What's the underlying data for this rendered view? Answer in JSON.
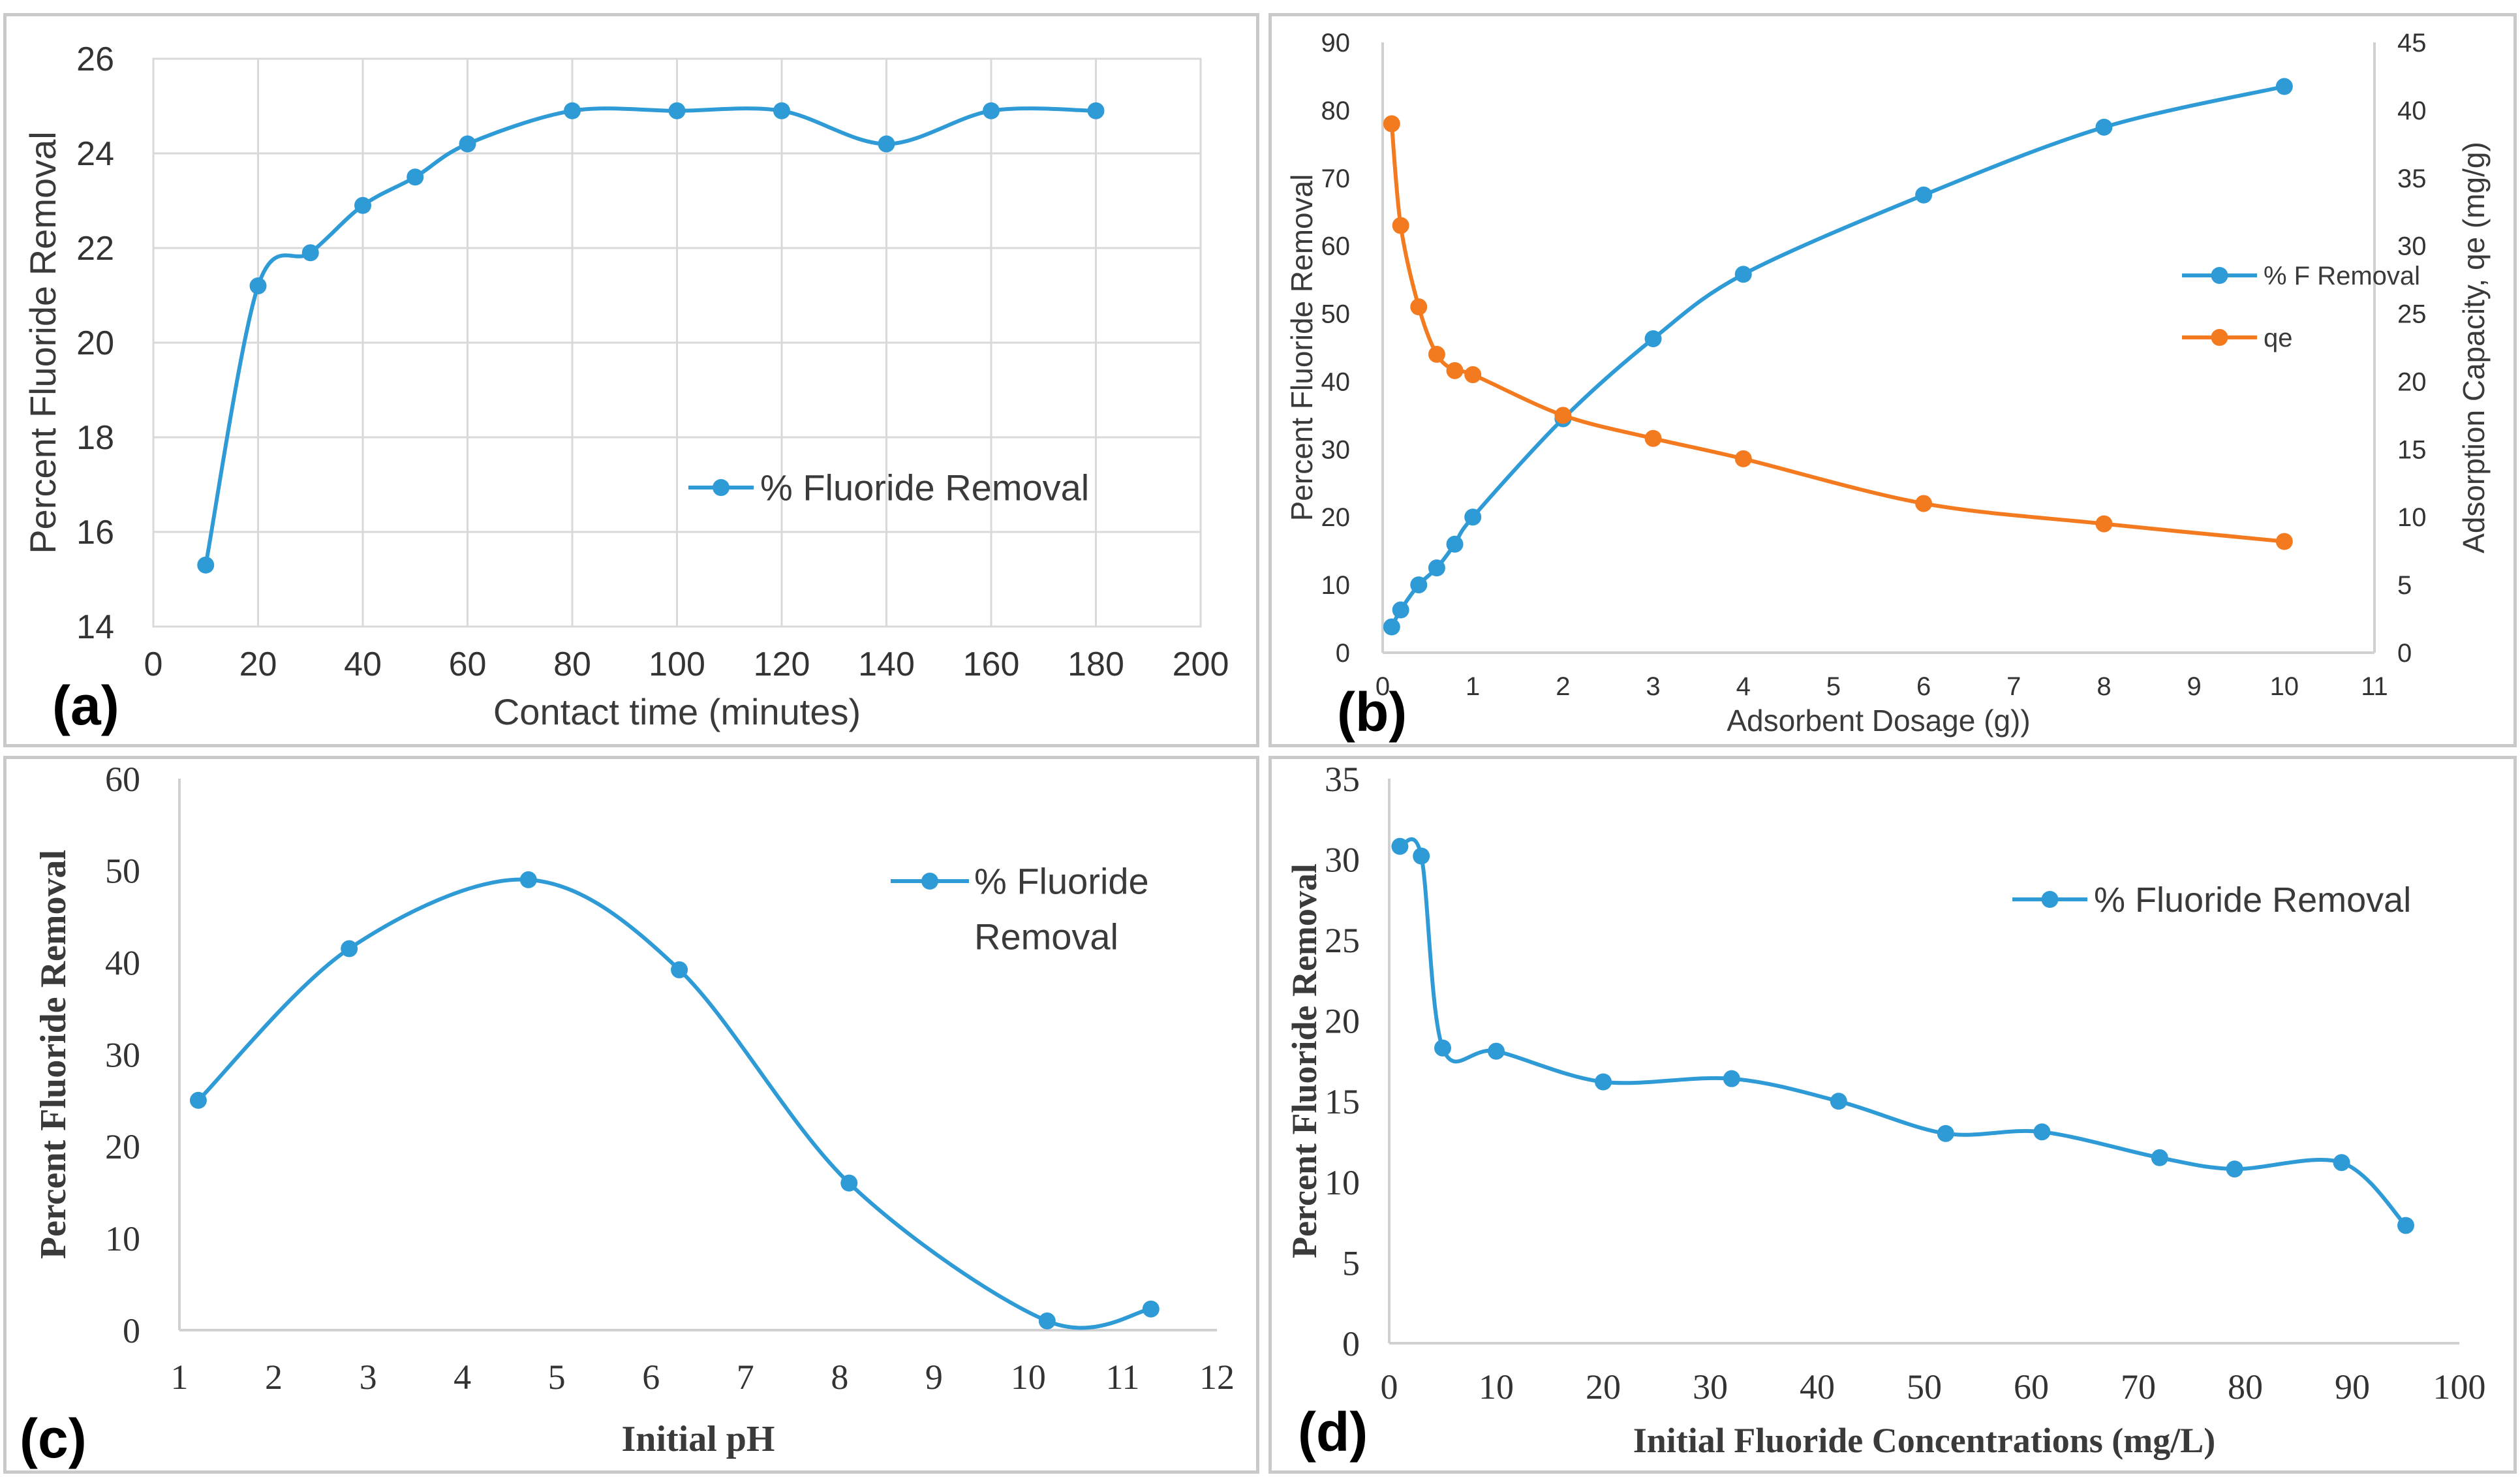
{
  "chart_data": [
    {
      "type": "line",
      "panel_label": "(a)",
      "xlabel": "Contact time (minutes)",
      "ylabel": "Percent Fluoride Removal",
      "xlim": [
        0,
        200
      ],
      "ylim": [
        14,
        26
      ],
      "xticks": [
        "0",
        "20",
        "40",
        "60",
        "80",
        "100",
        "120",
        "140",
        "160",
        "180",
        "200"
      ],
      "yticks": [
        "14",
        "16",
        "18",
        "20",
        "22",
        "24",
        "26"
      ],
      "grid": "horizontal",
      "legend_position": "right",
      "color": "#2e9bd6",
      "series": [
        {
          "name": "% Fluoride Removal",
          "x": [
            10,
            20,
            30,
            40,
            50,
            60,
            80,
            100,
            120,
            140,
            160,
            180
          ],
          "y": [
            15.3,
            21.2,
            21.9,
            22.9,
            23.5,
            24.2,
            24.9,
            24.9,
            24.9,
            24.2,
            24.9,
            24.9
          ]
        }
      ]
    },
    {
      "type": "line",
      "panel_label": "(b)",
      "xlabel": "Adsorbent Dosage (g))",
      "ylabel": "Percent Fluoride Removal",
      "y2label": "Adsorption Capacity, qe (mg/g)",
      "xlim": [
        0,
        11
      ],
      "ylim": [
        0,
        90
      ],
      "y2lim": [
        0,
        45
      ],
      "xticks": [
        "0",
        "1",
        "2",
        "3",
        "4",
        "5",
        "6",
        "7",
        "8",
        "9",
        "10",
        "11"
      ],
      "yticks": [
        "0",
        "10",
        "20",
        "30",
        "40",
        "50",
        "60",
        "70",
        "80",
        "90"
      ],
      "y2ticks": [
        "0",
        "5",
        "10",
        "15",
        "20",
        "25",
        "30",
        "35",
        "40",
        "45"
      ],
      "grid": "none",
      "legend_position": "center-right",
      "series": [
        {
          "name": "% F Removal",
          "axis": "left",
          "color": "#2e9bd6",
          "x": [
            0.1,
            0.2,
            0.4,
            0.6,
            0.8,
            1,
            2,
            3,
            4,
            6,
            8,
            10
          ],
          "y": [
            3.8,
            6.3,
            10,
            12.5,
            16,
            20,
            34.5,
            46.3,
            55.8,
            67.5,
            77.5,
            83.5
          ]
        },
        {
          "name": "qe",
          "axis": "right",
          "color": "#f47a20",
          "x": [
            0.1,
            0.2,
            0.4,
            0.6,
            0.8,
            1,
            2,
            3,
            4,
            6,
            8,
            10
          ],
          "y": [
            39,
            31.5,
            25.5,
            22,
            20.8,
            20.5,
            17.5,
            15.8,
            14.3,
            11,
            9.5,
            8.2
          ]
        }
      ]
    },
    {
      "type": "line",
      "panel_label": "(c)",
      "xlabel": "Initial pH",
      "ylabel": "Percent Fluoride Removal",
      "xlim": [
        1,
        12
      ],
      "ylim": [
        0,
        60
      ],
      "xticks": [
        "1",
        "2",
        "3",
        "4",
        "5",
        "6",
        "7",
        "8",
        "9",
        "10",
        "11",
        "12"
      ],
      "yticks": [
        "0",
        "10",
        "20",
        "30",
        "40",
        "50",
        "60"
      ],
      "grid": "none",
      "legend_position": "top-right",
      "color": "#2e9bd6",
      "series": [
        {
          "name": "% Fluoride Removal",
          "legend_lines": [
            "% Fluoride",
            "Removal"
          ],
          "x": [
            1.2,
            2.8,
            4.7,
            6.3,
            8.1,
            10.2,
            11.3
          ],
          "y": [
            25,
            41.5,
            49,
            39.2,
            16,
            1,
            2.3
          ]
        }
      ]
    },
    {
      "type": "line",
      "panel_label": "(d)",
      "xlabel": "Initial Fluoride Concentrations (mg/L)",
      "ylabel": "Percent Fluoride Removal",
      "xlim": [
        0,
        100
      ],
      "ylim": [
        0,
        35
      ],
      "xticks": [
        "0",
        "10",
        "20",
        "30",
        "40",
        "50",
        "60",
        "70",
        "80",
        "90",
        "100"
      ],
      "yticks": [
        "0",
        "5",
        "10",
        "15",
        "20",
        "25",
        "30",
        "35"
      ],
      "grid": "none",
      "legend_position": "top-right",
      "color": "#2e9bd6",
      "series": [
        {
          "name": "% Fluoride Removal",
          "x": [
            1,
            3,
            5,
            10,
            20,
            32,
            42,
            52,
            61,
            72,
            79,
            89,
            95
          ],
          "y": [
            30.8,
            30.2,
            18.3,
            18.1,
            16.2,
            16.4,
            15,
            13,
            13.1,
            11.5,
            10.8,
            11.2,
            7.3
          ]
        }
      ]
    }
  ]
}
